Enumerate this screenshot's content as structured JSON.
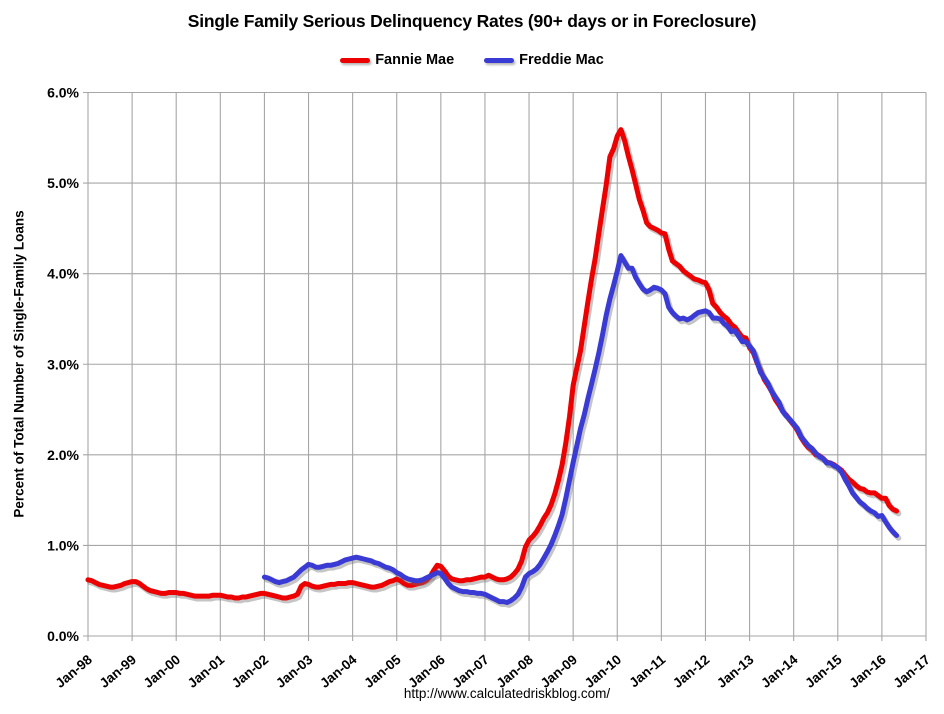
{
  "title": "Single Family Serious Delinquency Rates (90+ days or in Foreclosure)",
  "footer": {
    "url": "http://www.calculatedriskblog.com/"
  },
  "legend": [
    {
      "label": "Fannie Mae",
      "color": "#ed0000"
    },
    {
      "label": "Freddie Mac",
      "color": "#3a3ad4"
    }
  ],
  "colors": {
    "fannie_mae": "#ed0000",
    "freddie_mac": "#3a3ad4",
    "grid": "#a6a6a6",
    "text": "#000000",
    "line_shadow": "rgba(110,110,110,0.40)",
    "background": "#ffffff"
  },
  "chart_data": {
    "type": "line",
    "title": "Single Family Serious Delinquency Rates (90+ days or in Foreclosure)",
    "xlabel": "",
    "ylabel": "Percent of Total Number of Single-Family Loans",
    "ylim": [
      0,
      6
    ],
    "ytick_labels": [
      "0.0%",
      "1.0%",
      "2.0%",
      "3.0%",
      "4.0%",
      "5.0%",
      "6.0%"
    ],
    "xtick_labels": [
      "Jan-98",
      "Jan-99",
      "Jan-00",
      "Jan-01",
      "Jan-02",
      "Jan-03",
      "Jan-04",
      "Jan-05",
      "Jan-06",
      "Jan-07",
      "Jan-08",
      "Jan-09",
      "Jan-10",
      "Jan-11",
      "Jan-12",
      "Jan-13",
      "Jan-14",
      "Jan-15",
      "Jan-16",
      "Jan-17"
    ],
    "x_unit": "month",
    "grid": true,
    "legend_position": "top",
    "series": [
      {
        "name": "Fannie Mae",
        "color": "#ed0000",
        "start": "Jan-1998",
        "end": "May-2016",
        "start_offset_months": 0,
        "values": [
          0.62,
          0.61,
          0.59,
          0.57,
          0.56,
          0.55,
          0.54,
          0.54,
          0.55,
          0.56,
          0.58,
          0.59,
          0.6,
          0.6,
          0.58,
          0.55,
          0.52,
          0.5,
          0.49,
          0.48,
          0.47,
          0.47,
          0.48,
          0.48,
          0.48,
          0.47,
          0.47,
          0.46,
          0.45,
          0.44,
          0.44,
          0.44,
          0.44,
          0.44,
          0.45,
          0.45,
          0.45,
          0.44,
          0.43,
          0.43,
          0.42,
          0.42,
          0.43,
          0.43,
          0.44,
          0.45,
          0.46,
          0.47,
          0.47,
          0.46,
          0.45,
          0.44,
          0.43,
          0.42,
          0.42,
          0.43,
          0.44,
          0.46,
          0.55,
          0.58,
          0.57,
          0.55,
          0.54,
          0.54,
          0.55,
          0.56,
          0.57,
          0.57,
          0.58,
          0.58,
          0.58,
          0.59,
          0.59,
          0.58,
          0.57,
          0.56,
          0.55,
          0.54,
          0.54,
          0.55,
          0.56,
          0.58,
          0.6,
          0.61,
          0.63,
          0.61,
          0.58,
          0.56,
          0.56,
          0.57,
          0.58,
          0.59,
          0.61,
          0.65,
          0.72,
          0.78,
          0.77,
          0.72,
          0.66,
          0.63,
          0.62,
          0.61,
          0.61,
          0.62,
          0.62,
          0.63,
          0.64,
          0.65,
          0.65,
          0.67,
          0.65,
          0.63,
          0.62,
          0.62,
          0.63,
          0.65,
          0.69,
          0.74,
          0.83,
          0.98,
          1.06,
          1.1,
          1.15,
          1.22,
          1.3,
          1.36,
          1.45,
          1.57,
          1.72,
          1.89,
          2.13,
          2.42,
          2.77,
          2.96,
          3.15,
          3.42,
          3.69,
          3.94,
          4.17,
          4.45,
          4.72,
          4.98,
          5.29,
          5.38,
          5.52,
          5.59,
          5.47,
          5.3,
          5.15,
          4.99,
          4.82,
          4.7,
          4.56,
          4.52,
          4.5,
          4.48,
          4.45,
          4.44,
          4.27,
          4.14,
          4.11,
          4.08,
          4.03,
          4.0,
          3.97,
          3.94,
          3.93,
          3.91,
          3.9,
          3.82,
          3.67,
          3.63,
          3.57,
          3.53,
          3.5,
          3.44,
          3.41,
          3.35,
          3.3,
          3.29,
          3.18,
          3.13,
          3.02,
          2.93,
          2.83,
          2.77,
          2.7,
          2.61,
          2.55,
          2.48,
          2.44,
          2.38,
          2.33,
          2.27,
          2.19,
          2.13,
          2.08,
          2.05,
          2.0,
          1.99,
          1.96,
          1.92,
          1.91,
          1.89,
          1.86,
          1.83,
          1.78,
          1.73,
          1.7,
          1.66,
          1.63,
          1.62,
          1.59,
          1.58,
          1.58,
          1.55,
          1.52,
          1.52,
          1.44,
          1.4,
          1.38
        ]
      },
      {
        "name": "Freddie Mac",
        "color": "#3a3ad4",
        "start": "Jan-2002",
        "end": "May-2016",
        "start_offset_months": 48,
        "values": [
          0.65,
          0.64,
          0.62,
          0.6,
          0.59,
          0.6,
          0.61,
          0.63,
          0.65,
          0.69,
          0.73,
          0.76,
          0.79,
          0.78,
          0.76,
          0.76,
          0.77,
          0.78,
          0.78,
          0.79,
          0.8,
          0.82,
          0.84,
          0.85,
          0.86,
          0.87,
          0.86,
          0.85,
          0.84,
          0.83,
          0.81,
          0.8,
          0.78,
          0.76,
          0.75,
          0.73,
          0.7,
          0.68,
          0.65,
          0.63,
          0.62,
          0.61,
          0.61,
          0.62,
          0.64,
          0.66,
          0.68,
          0.7,
          0.69,
          0.64,
          0.58,
          0.54,
          0.52,
          0.5,
          0.49,
          0.49,
          0.48,
          0.48,
          0.47,
          0.47,
          0.46,
          0.44,
          0.42,
          0.4,
          0.38,
          0.38,
          0.37,
          0.39,
          0.42,
          0.46,
          0.54,
          0.65,
          0.69,
          0.71,
          0.74,
          0.79,
          0.86,
          0.93,
          1.01,
          1.11,
          1.22,
          1.34,
          1.52,
          1.72,
          1.92,
          2.1,
          2.29,
          2.44,
          2.62,
          2.78,
          2.95,
          3.13,
          3.33,
          3.54,
          3.72,
          3.87,
          4.03,
          4.2,
          4.13,
          4.06,
          4.06,
          3.96,
          3.89,
          3.83,
          3.8,
          3.82,
          3.85,
          3.84,
          3.82,
          3.78,
          3.63,
          3.57,
          3.53,
          3.5,
          3.51,
          3.49,
          3.51,
          3.54,
          3.57,
          3.58,
          3.59,
          3.57,
          3.51,
          3.51,
          3.5,
          3.45,
          3.42,
          3.36,
          3.37,
          3.31,
          3.25,
          3.25,
          3.2,
          3.15,
          3.03,
          2.91,
          2.85,
          2.79,
          2.7,
          2.64,
          2.58,
          2.48,
          2.43,
          2.39,
          2.34,
          2.29,
          2.2,
          2.15,
          2.1,
          2.07,
          2.02,
          1.98,
          1.96,
          1.91,
          1.91,
          1.88,
          1.86,
          1.81,
          1.73,
          1.66,
          1.58,
          1.53,
          1.48,
          1.45,
          1.41,
          1.38,
          1.36,
          1.32,
          1.33,
          1.26,
          1.2,
          1.15,
          1.11
        ]
      }
    ]
  }
}
